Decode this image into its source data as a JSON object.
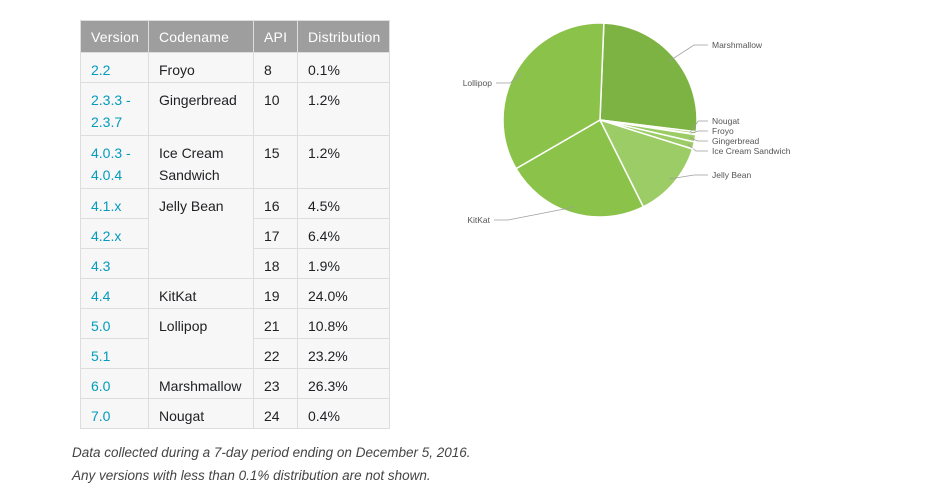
{
  "table": {
    "headers": [
      "Version",
      "Codename",
      "API",
      "Distribution"
    ],
    "rows": [
      {
        "version": "2.2",
        "codename": "Froyo",
        "api": "8",
        "distribution": "0.1%"
      },
      {
        "version": "2.3.3 - 2.3.7",
        "codename": "Gingerbread",
        "api": "10",
        "distribution": "1.2%"
      },
      {
        "version": "4.0.3 - 4.0.4",
        "codename": "Ice Cream Sandwich",
        "api": "15",
        "distribution": "1.2%"
      },
      {
        "version": "4.1.x",
        "codename": "Jelly Bean",
        "api": "16",
        "distribution": "4.5%"
      },
      {
        "version": "4.2.x",
        "codename": "",
        "api": "17",
        "distribution": "6.4%"
      },
      {
        "version": "4.3",
        "codename": "",
        "api": "18",
        "distribution": "1.9%"
      },
      {
        "version": "4.4",
        "codename": "KitKat",
        "api": "19",
        "distribution": "24.0%"
      },
      {
        "version": "5.0",
        "codename": "Lollipop",
        "api": "21",
        "distribution": "10.8%"
      },
      {
        "version": "5.1",
        "codename": "",
        "api": "22",
        "distribution": "23.2%"
      },
      {
        "version": "6.0",
        "codename": "Marshmallow",
        "api": "23",
        "distribution": "26.3%"
      },
      {
        "version": "7.0",
        "codename": "Nougat",
        "api": "24",
        "distribution": "0.4%"
      }
    ]
  },
  "footnotes": {
    "line1": "Data collected during a 7-day period ending on December 5, 2016.",
    "line2": "Any versions with less than 0.1% distribution are not shown."
  },
  "colors": {
    "header_bg": "#9e9e9e",
    "version_link": "#039bbe",
    "slice_dark": "#7cb342",
    "slice_mid": "#8bc34a",
    "slice_light": "#9ccc65"
  },
  "chart_data": {
    "type": "pie",
    "slices": [
      {
        "label": "Marshmallow",
        "value": 26.3
      },
      {
        "label": "Nougat",
        "value": 0.4
      },
      {
        "label": "Froyo",
        "value": 0.1
      },
      {
        "label": "Gingerbread",
        "value": 1.2
      },
      {
        "label": "Ice Cream Sandwich",
        "value": 1.2
      },
      {
        "label": "Jelly Bean",
        "value": 12.8
      },
      {
        "label": "KitKat",
        "value": 24.0
      },
      {
        "label": "Lollipop",
        "value": 34.0
      }
    ],
    "legend": "none (labels with leader lines)"
  }
}
